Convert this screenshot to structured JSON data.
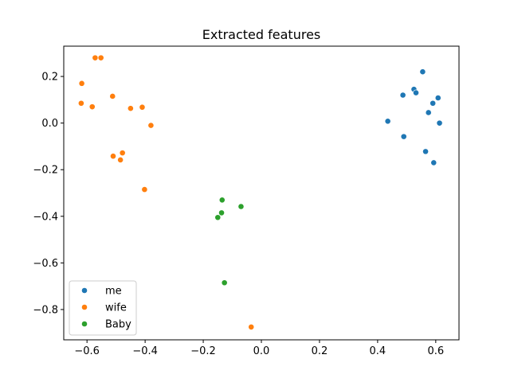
{
  "chart_data": {
    "type": "scatter",
    "title": "Extracted features",
    "xlabel": "",
    "ylabel": "",
    "xlim": [
      -0.68,
      0.68
    ],
    "ylim": [
      -0.93,
      0.33
    ],
    "xticks": [
      -0.6,
      -0.4,
      -0.2,
      0.0,
      0.2,
      0.4,
      0.6
    ],
    "xtick_labels": [
      "−0.6",
      "−0.4",
      "−0.2",
      "0.0",
      "0.2",
      "0.4",
      "0.6"
    ],
    "yticks": [
      0.2,
      0.0,
      -0.2,
      -0.4,
      -0.6,
      -0.8
    ],
    "ytick_labels": [
      "0.2",
      "0.0",
      "−0.2",
      "−0.4",
      "−0.6",
      "−0.8"
    ],
    "grid": false,
    "legend": "lower-left",
    "series": [
      {
        "name": "me",
        "color": "#1f77b4",
        "points": [
          [
            0.555,
            0.22
          ],
          [
            0.525,
            0.145
          ],
          [
            0.532,
            0.13
          ],
          [
            0.487,
            0.12
          ],
          [
            0.608,
            0.108
          ],
          [
            0.59,
            0.085
          ],
          [
            0.575,
            0.045
          ],
          [
            0.435,
            0.008
          ],
          [
            0.613,
            0.0
          ],
          [
            0.49,
            -0.058
          ],
          [
            0.565,
            -0.122
          ],
          [
            0.593,
            -0.17
          ]
        ]
      },
      {
        "name": "wife",
        "color": "#ff7f0e",
        "points": [
          [
            -0.572,
            0.28
          ],
          [
            -0.552,
            0.28
          ],
          [
            -0.618,
            0.17
          ],
          [
            -0.512,
            0.115
          ],
          [
            -0.62,
            0.085
          ],
          [
            -0.582,
            0.07
          ],
          [
            -0.41,
            0.068
          ],
          [
            -0.45,
            0.063
          ],
          [
            -0.38,
            -0.01
          ],
          [
            -0.478,
            -0.128
          ],
          [
            -0.51,
            -0.142
          ],
          [
            -0.485,
            -0.158
          ],
          [
            -0.402,
            -0.285
          ],
          [
            -0.035,
            -0.875
          ]
        ]
      },
      {
        "name": "Baby",
        "color": "#2ca02c",
        "points": [
          [
            -0.135,
            -0.33
          ],
          [
            -0.07,
            -0.358
          ],
          [
            -0.137,
            -0.385
          ],
          [
            -0.15,
            -0.405
          ],
          [
            -0.127,
            -0.685
          ]
        ]
      }
    ]
  }
}
